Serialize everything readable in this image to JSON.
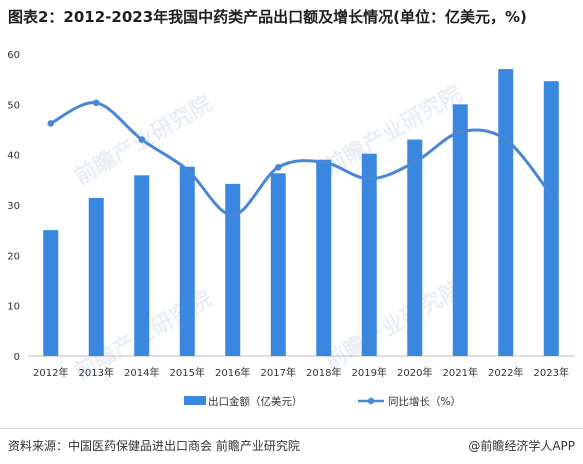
{
  "header": {
    "title": "图表2：2012-2023年我国中药类产品出口额及增长情况(单位：亿美元，%)"
  },
  "watermark": {
    "text": "前瞻产业研究院"
  },
  "footer": {
    "source": "资料来源：中国医药保健品进出口商会 前瞻产业研究院",
    "credit": "@前瞻经济学人APP"
  },
  "colors": {
    "bar": "#3a87e0",
    "line": "#4a86d6"
  },
  "chart_data": {
    "type": "bar",
    "categories": [
      "2012年",
      "2013年",
      "2014年",
      "2015年",
      "2016年",
      "2017年",
      "2018年",
      "2019年",
      "2020年",
      "2021年",
      "2022年",
      "2023年"
    ],
    "series": [
      {
        "name": "出口金额（亿美元）",
        "type": "bar",
        "values": [
          25.0,
          31.4,
          35.9,
          37.6,
          34.2,
          36.3,
          39.0,
          40.2,
          43.0,
          50.0,
          57.0,
          54.6
        ]
      },
      {
        "name": "同比增长（%）",
        "type": "line",
        "values": [
          46.2,
          50.3,
          43.0,
          37.0,
          28.0,
          37.5,
          38.5,
          35.2,
          38.5,
          44.5,
          43.0,
          32.0
        ]
      }
    ],
    "yticks": [
      0,
      10,
      20,
      30,
      40,
      50,
      60
    ],
    "ylim": [
      0,
      60
    ],
    "grid": false,
    "legend": "bottom"
  }
}
